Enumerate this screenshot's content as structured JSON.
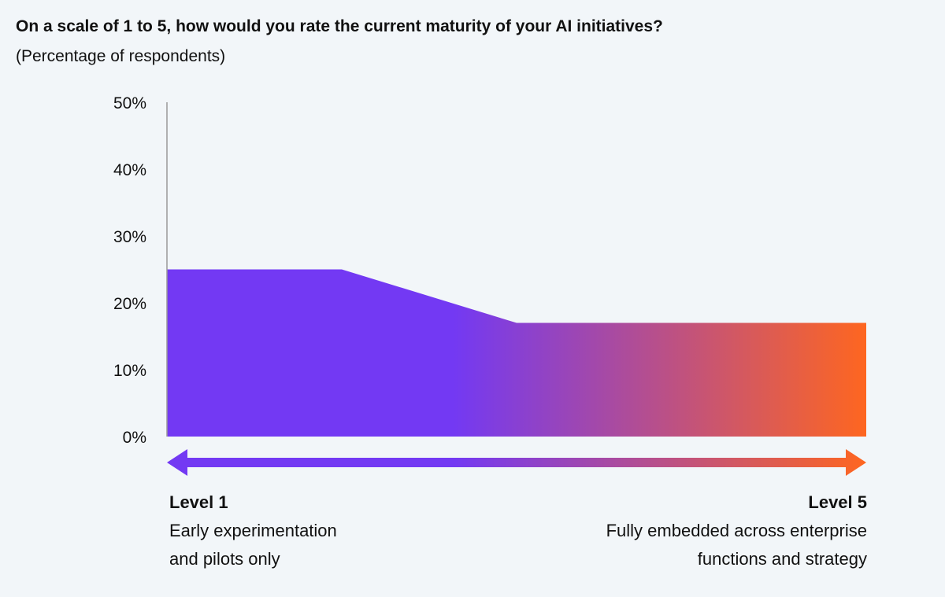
{
  "chart_data": {
    "type": "area",
    "title": "On a scale of 1 to 5, how would you rate the current maturity of your AI initiatives?",
    "subtitle": "(Percentage of respondents)",
    "categories": [
      "Level 1",
      null,
      null,
      null,
      "Level 5"
    ],
    "values": [
      25,
      25,
      17,
      17,
      17
    ],
    "category_descriptions": [
      [
        "Early experimentation",
        "and pilots only"
      ],
      null,
      null,
      null,
      [
        "Fully embedded across enterprise",
        "functions and strategy"
      ]
    ],
    "colors": [
      "#7339f3",
      "#fe6620"
    ],
    "ylim": [
      0,
      50
    ],
    "yticks": [
      {
        "value": 0,
        "label": "0%"
      },
      {
        "value": 10,
        "label": "10%"
      },
      {
        "value": 20,
        "label": "20%"
      },
      {
        "value": 30,
        "label": "30%"
      },
      {
        "value": 40,
        "label": "40%"
      },
      {
        "value": 50,
        "label": "50%"
      }
    ],
    "grid": false
  }
}
